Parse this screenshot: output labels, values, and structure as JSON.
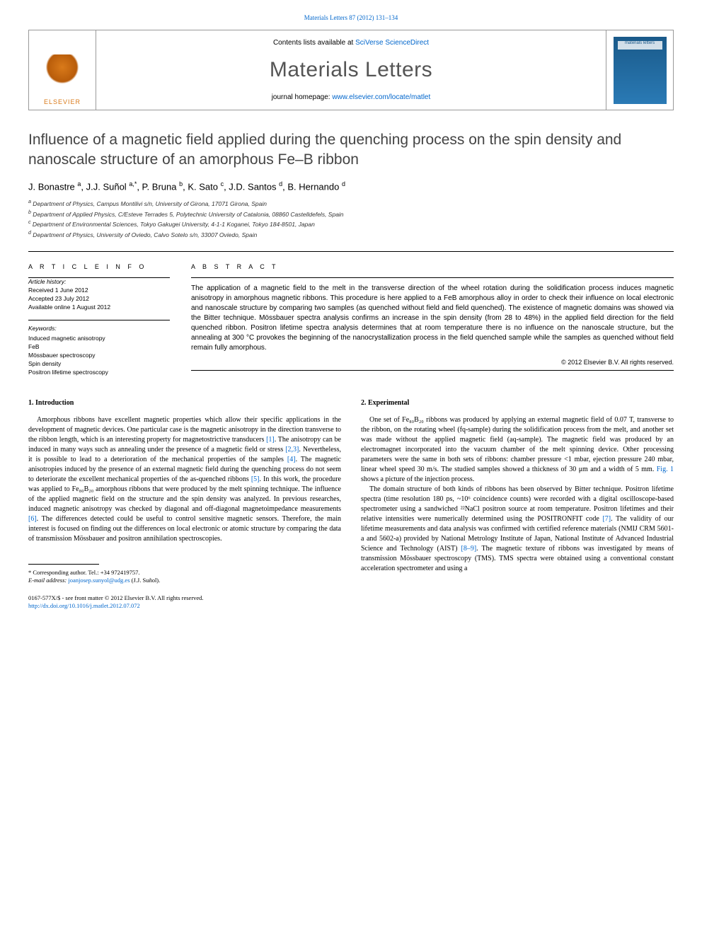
{
  "topCitation": "Materials Letters 87 (2012) 131–134",
  "header": {
    "contentsPrefix": "Contents lists available at ",
    "contentsLink": "SciVerse ScienceDirect",
    "journalTitle": "Materials Letters",
    "homepagePrefix": "journal homepage: ",
    "homepageLink": "www.elsevier.com/locate/matlet",
    "publisher": "ELSEVIER",
    "coverCaption": "materials letters"
  },
  "article": {
    "title": "Influence of a magnetic field applied during the quenching process on the spin density and nanoscale structure of an amorphous Fe–B ribbon",
    "authorsHtml": "J. Bonastre <sup>a</sup>, J.J. Suñol <sup>a,*</sup>, P. Bruna <sup>b</sup>, K. Sato <sup>c</sup>, J.D. Santos <sup>d</sup>, B. Hernando <sup>d</sup>",
    "affiliations": [
      "a Department of Physics, Campus Montilivi s/n, University of Girona, 17071 Girona, Spain",
      "b Department of Applied Physics, C/Esteve Terrades 5, Polytechnic University of Catalonia, 08860 Castelldefels, Spain",
      "c Department of Environmental Sciences, Tokyo Gakugei University, 4-1-1 Koganei, Tokyo 184-8501, Japan",
      "d Department of Physics, University of Oviedo, Calvo Sotelo s/n, 33007 Oviedo, Spain"
    ]
  },
  "info": {
    "heading": "A R T I C L E  I N F O",
    "historyLabel": "Article history:",
    "history": [
      "Received 1 June 2012",
      "Accepted 23 July 2012",
      "Available online 1 August 2012"
    ],
    "keywordsLabel": "Keywords:",
    "keywords": [
      "Induced magnetic anisotropy",
      "FeB",
      "Mössbauer spectroscopy",
      "Spin density",
      "Positron lifetime spectroscopy"
    ]
  },
  "abstract": {
    "heading": "A B S T R A C T",
    "text": "The application of a magnetic field to the melt in the transverse direction of the wheel rotation during the solidification process induces magnetic anisotropy in amorphous magnetic ribbons. This procedure is here applied to a FeB amorphous alloy in order to check their influence on local electronic and nanoscale structure by comparing two samples (as quenched without field and field quenched). The existence of magnetic domains was showed via the Bitter technique. Mössbauer spectra analysis confirms an increase in the spin density (from 28 to 48%) in the applied field direction for the field quenched ribbon. Positron lifetime spectra analysis determines that at room temperature there is no influence on the nanoscale structure, but the annealing at 300 °C provokes the beginning of the nanocrystallization process in the field quenched sample while the samples as quenched without field remain fully amorphous.",
    "copyright": "© 2012 Elsevier B.V. All rights reserved."
  },
  "sections": {
    "s1": {
      "heading": "1.  Introduction",
      "p1a": "Amorphous ribbons have excellent magnetic properties which allow their specific applications in the development of magnetic devices. One particular case is the magnetic anisotropy in the direction transverse to the ribbon length, which is an interesting property for magnetostrictive transducers ",
      "p1b": ". The anisotropy can be induced in many ways such as annealing under the presence of a magnetic field or stress ",
      "p1c": ". Nevertheless, it is possible to lead to a deterioration of the mechanical properties of the samples ",
      "p1d": ". The magnetic anisotropies induced by the presence of an external magnetic field during the quenching process do not seem to deteriorate the excellent mechanical properties of the as-quenched ribbons ",
      "p1e": ". In this work, the procedure was applied to Fe₈₀B₂₀ amorphous ribbons that were produced by the melt spinning technique. The influence of the applied magnetic field on the structure and the spin density was analyzed. In previous researches, induced magnetic anisotropy was checked by diagonal and off-diagonal magnetoimpedance measurements ",
      "p1f": ". The differences detected could be useful to control sensitive magnetic sensors. Therefore, the main interest is focused on finding out the differences on local electronic or atomic structure by comparing the data of transmission Mössbauer and positron annihilation spectroscopies."
    },
    "s2": {
      "heading": "2.  Experimental",
      "p1a": "One set of Fe₈₀B₂₀ ribbons was produced by applying an external magnetic field of 0.07 T, transverse to the ribbon, on the rotating wheel (fq-sample) during the solidification process from the melt, and another set was made without the applied magnetic field (aq-sample). The magnetic field was produced by an electromagnet incorporated into the vacuum chamber of the melt spinning device. Other processing parameters were the same in both sets of ribbons: chamber pressure <1 mbar, ejection pressure 240 mbar, linear wheel speed 30 m/s. The studied samples showed a thickness of 30 μm and a width of 5 mm. ",
      "p1b": " shows a picture of the injection process.",
      "p2a": "The domain structure of both kinds of ribbons has been observed by Bitter technique. Positron lifetime spectra (time resolution 180 ps, ~10⁶ coincidence counts) were recorded with a digital oscilloscope-based spectrometer using a sandwiched ²²NaCl positron source at room temperature. Positron lifetimes and their relative intensities were numerically determined using the POSITRONFIT code ",
      "p2b": ". The validity of our lifetime measurements and data analysis was confirmed with certified reference materials (NMIJ CRM 5601-a and 5602-a) provided by National Metrology Institute of Japan, National Institute of Advanced Industrial Science and Technology (AIST) ",
      "p2c": ". The magnetic texture of ribbons was investigated by means of transmission Mössbauer spectroscopy (TMS). TMS spectra were obtained using a conventional constant acceleration spectrometer and using a"
    }
  },
  "refs": {
    "r1": "[1]",
    "r23": "[2,3]",
    "r4": "[4]",
    "r5": "[5]",
    "r6": "[6]",
    "r7": "[7]",
    "r89": "[8–9]",
    "fig1": "Fig. 1"
  },
  "footnotes": {
    "corr": "* Corresponding author. Tel.: +34 972419757.",
    "emailLabel": "E-mail address: ",
    "email": "joanjosep.sunyol@udg.es",
    "emailSuffix": " (J.J. Suñol)."
  },
  "footer": {
    "line1": "0167-577X/$ - see front matter © 2012 Elsevier B.V. All rights reserved.",
    "line2": "http://dx.doi.org/10.1016/j.matlet.2012.07.072"
  },
  "colors": {
    "link": "#0066cc",
    "elsevierOrange": "#d97a1a",
    "coverBlue": "#1a5a8a"
  }
}
